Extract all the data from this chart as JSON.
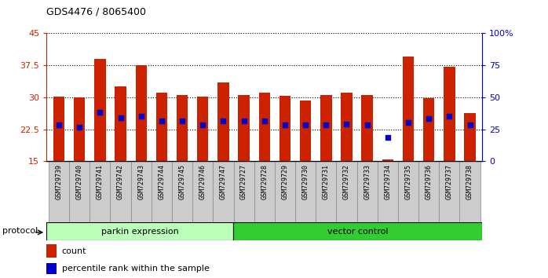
{
  "title": "GDS4476 / 8065400",
  "samples": [
    "GSM729739",
    "GSM729740",
    "GSM729741",
    "GSM729742",
    "GSM729743",
    "GSM729744",
    "GSM729745",
    "GSM729746",
    "GSM729747",
    "GSM729727",
    "GSM729728",
    "GSM729729",
    "GSM729730",
    "GSM729731",
    "GSM729732",
    "GSM729733",
    "GSM729734",
    "GSM729735",
    "GSM729736",
    "GSM729737",
    "GSM729738"
  ],
  "bar_heights": [
    30.2,
    30.0,
    39.0,
    32.5,
    37.5,
    31.0,
    30.5,
    30.2,
    33.5,
    30.5,
    31.0,
    30.3,
    29.3,
    30.5,
    31.0,
    30.5,
    15.5,
    39.5,
    29.8,
    37.2,
    26.3
  ],
  "blue_dot_y": [
    23.5,
    23.0,
    26.5,
    25.2,
    25.5,
    24.5,
    24.5,
    23.5,
    24.5,
    24.5,
    24.5,
    23.5,
    23.5,
    23.5,
    23.8,
    23.5,
    20.5,
    24.0,
    25.0,
    25.5,
    23.5
  ],
  "parkin_count": 9,
  "vector_count": 12,
  "ylim_left": [
    15,
    45
  ],
  "ylim_right": [
    0,
    100
  ],
  "yticks_left": [
    15,
    22.5,
    30,
    37.5,
    45
  ],
  "ytick_labels_left": [
    "15",
    "22.5",
    "30",
    "37.5",
    "45"
  ],
  "yticks_right": [
    0,
    25,
    50,
    75,
    100
  ],
  "ytick_labels_right": [
    "0",
    "25",
    "50",
    "75",
    "100%"
  ],
  "bar_color": "#CC2200",
  "dot_color": "#0000CC",
  "parkin_color": "#BBFFBB",
  "vector_color": "#33CC33",
  "xtick_bg": "#CCCCCC",
  "protocol_label": "protocol",
  "parkin_label": "parkin expression",
  "vector_label": "vector control",
  "legend_count_label": "count",
  "legend_pct_label": "percentile rank within the sample"
}
